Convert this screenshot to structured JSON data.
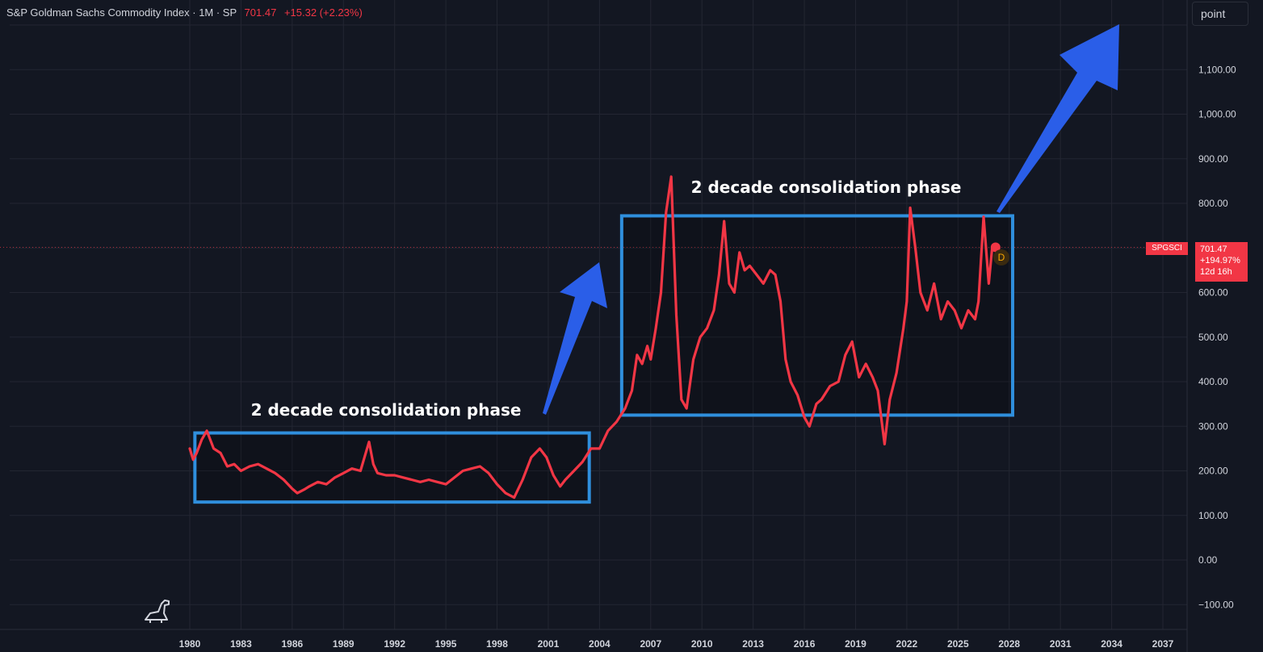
{
  "header": {
    "symbol_line": "S&P Goldman Sachs Commodity Index · 1M · SP",
    "price": "701.47",
    "change": "+15.32 (+2.23%)"
  },
  "toolbar": {
    "point_label": "point"
  },
  "price_tag": {
    "symbol": "SPGSCI",
    "price": "701.47",
    "pct": "+194.97%",
    "countdown": "12d 16h"
  },
  "badge": {
    "label": "D"
  },
  "annotations": {
    "box1_label": "2 decade consolidation phase",
    "box2_label": "2 decade consolidation phase"
  },
  "colors": {
    "background": "#131722",
    "grid": "#232632",
    "line": "#f23645",
    "box": "#2f8fdd",
    "arrow": "#2a5ee8",
    "text": "#d1d4dc"
  },
  "chart_data": {
    "type": "line",
    "y_ticks": [
      "1,100.00",
      "1,000.00",
      "900.00",
      "800.00",
      "700.00",
      "600.00",
      "500.00",
      "400.00",
      "300.00",
      "200.00",
      "100.00",
      "0.00",
      "−100.00"
    ],
    "x_ticks": [
      "1980",
      "1983",
      "1986",
      "1989",
      "1992",
      "1995",
      "1998",
      "2001",
      "2004",
      "2007",
      "2010",
      "2013",
      "2016",
      "2019",
      "2022",
      "2025",
      "2028",
      "2031",
      "2034",
      "2037"
    ],
    "ylim": [
      -150,
      1270
    ],
    "xlim": [
      1979.0,
      2039.5
    ],
    "last_value": 701.47,
    "series": [
      {
        "x": [
          1980.0,
          1980.2,
          1980.4,
          1980.7,
          1981.0,
          1981.4,
          1981.8,
          1982.2,
          1982.6,
          1983.0,
          1983.5,
          1984.0,
          1984.5,
          1985.0,
          1985.5,
          1986.0,
          1986.3,
          1986.7,
          1987.0,
          1987.5,
          1988.0,
          1988.5,
          1989.0,
          1989.5,
          1990.0,
          1990.5,
          1990.75,
          1991.0,
          1991.5,
          1992.0,
          1992.5,
          1993.0,
          1993.5,
          1994.0,
          1994.5,
          1995.0,
          1995.5,
          1996.0,
          1996.5,
          1997.0,
          1997.5,
          1998.0,
          1998.5,
          1999.0,
          1999.5,
          2000.0,
          2000.5,
          2000.9,
          2001.3,
          2001.7,
          2002.0,
          2002.5,
          2003.0,
          2003.5,
          2004.0,
          2004.5,
          2005.0,
          2005.5,
          2005.9,
          2006.2,
          2006.5,
          2006.8,
          2007.0,
          2007.3,
          2007.6,
          2007.9,
          2008.2,
          2008.5,
          2008.8,
          2009.1,
          2009.5,
          2009.9,
          2010.3,
          2010.7,
          2011.0,
          2011.3,
          2011.6,
          2011.9,
          2012.2,
          2012.5,
          2012.8,
          2013.2,
          2013.6,
          2014.0,
          2014.3,
          2014.6,
          2014.9,
          2015.2,
          2015.6,
          2016.0,
          2016.3,
          2016.7,
          2017.0,
          2017.5,
          2018.0,
          2018.4,
          2018.8,
          2019.2,
          2019.6,
          2020.0,
          2020.3,
          2020.7,
          2021.0,
          2021.4,
          2021.8,
          2022.0,
          2022.2,
          2022.5,
          2022.8,
          2023.2,
          2023.6,
          2024.0,
          2024.4,
          2024.8,
          2025.2,
          2025.6,
          2026.0,
          2026.2,
          2026.5,
          2026.8,
          2027.0,
          2027.2
        ],
        "y": [
          250,
          225,
          240,
          270,
          290,
          250,
          240,
          210,
          215,
          200,
          210,
          215,
          205,
          195,
          180,
          160,
          150,
          158,
          165,
          175,
          170,
          185,
          195,
          205,
          200,
          265,
          215,
          195,
          190,
          190,
          185,
          180,
          175,
          180,
          175,
          170,
          185,
          200,
          205,
          210,
          195,
          170,
          150,
          140,
          180,
          230,
          250,
          230,
          190,
          165,
          180,
          200,
          220,
          250,
          250,
          290,
          310,
          340,
          380,
          460,
          440,
          480,
          450,
          520,
          600,
          780,
          860,
          550,
          360,
          340,
          450,
          500,
          520,
          560,
          640,
          760,
          620,
          600,
          690,
          650,
          660,
          640,
          620,
          650,
          640,
          580,
          450,
          400,
          370,
          320,
          300,
          350,
          360,
          390,
          400,
          460,
          490,
          410,
          440,
          410,
          380,
          260,
          360,
          420,
          520,
          580,
          790,
          700,
          600,
          560,
          620,
          540,
          580,
          560,
          520,
          560,
          540,
          580,
          770,
          620,
          700,
          701.47
        ]
      }
    ]
  }
}
